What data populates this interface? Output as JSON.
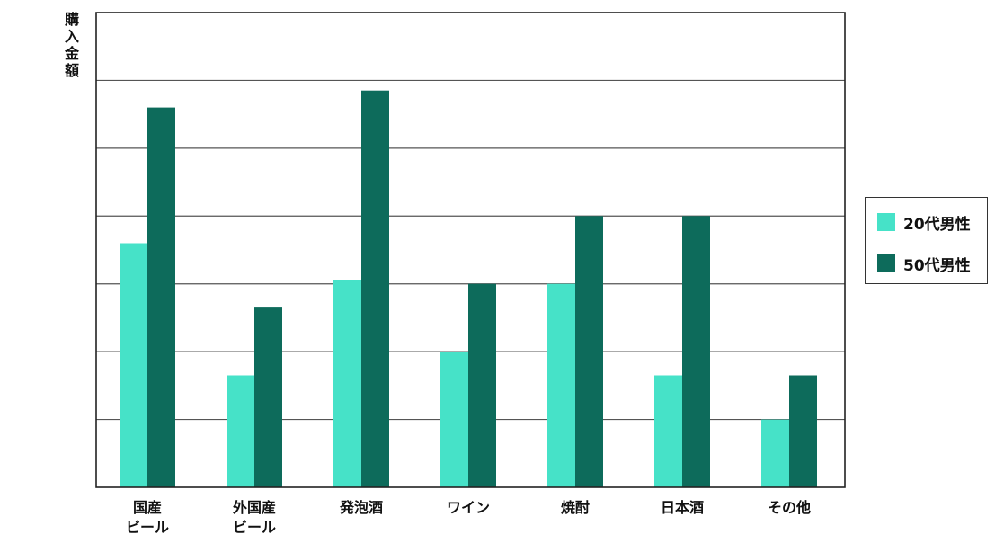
{
  "chart_data": {
    "type": "bar",
    "title": "",
    "xlabel": "",
    "ylabel": "購入金額",
    "ylim": [
      0,
      7
    ],
    "grid": true,
    "legend_position": "right",
    "categories": [
      [
        "国産",
        "ビール"
      ],
      [
        "外国産",
        "ビール"
      ],
      [
        "発泡酒"
      ],
      [
        "ワイン"
      ],
      [
        "焼酎"
      ],
      [
        "日本酒"
      ],
      [
        "その他"
      ]
    ],
    "series": [
      {
        "name": "20代男性",
        "color": "#46e2c8",
        "values": [
          3.6,
          1.65,
          3.05,
          2.0,
          3.0,
          1.65,
          1.0
        ]
      },
      {
        "name": "50代男性",
        "color": "#0d6b5b",
        "values": [
          5.6,
          2.65,
          5.85,
          3.0,
          4.0,
          4.0,
          1.65
        ]
      }
    ]
  }
}
